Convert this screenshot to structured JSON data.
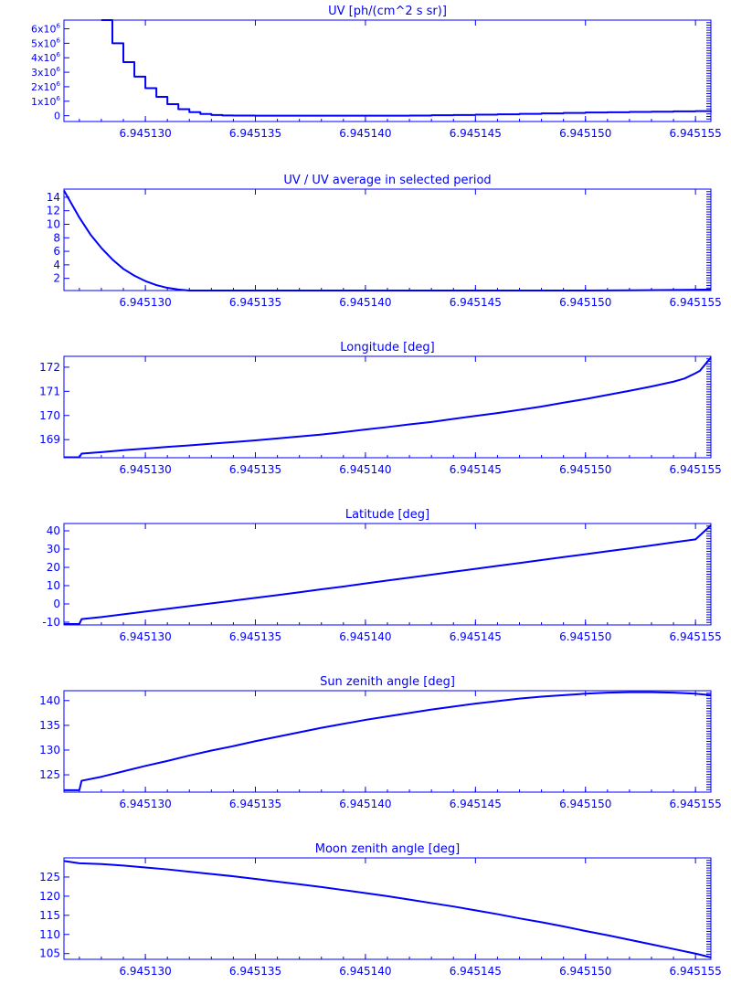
{
  "figure": {
    "line_color": "#0000ff",
    "background": "#ffffff"
  },
  "chart_data": [
    {
      "type": "line",
      "title": "UV [ph/(cm^2 s sr)]",
      "xlim": [
        6.9451263,
        6.9451557
      ],
      "ylim": [
        -400000,
        6600000
      ],
      "xticks": [
        6.94513,
        6.945135,
        6.94514,
        6.945145,
        6.94515,
        6.945155
      ],
      "xtick_labels": [
        "6.945130",
        "6.945135",
        "6.945140",
        "6.945145",
        "6.945150",
        "6.945155"
      ],
      "yticks": [
        0,
        1000000,
        2000000,
        3000000,
        4000000,
        5000000,
        6000000
      ],
      "ytick_labels": [
        {
          "mantissa": "0",
          "exponent": ""
        },
        {
          "mantissa": "1x10",
          "exponent": "6"
        },
        {
          "mantissa": "2x10",
          "exponent": "6"
        },
        {
          "mantissa": "3x10",
          "exponent": "6"
        },
        {
          "mantissa": "4x10",
          "exponent": "6"
        },
        {
          "mantissa": "5x10",
          "exponent": "6"
        },
        {
          "mantissa": "6x10",
          "exponent": "6"
        }
      ],
      "step": true,
      "x": [
        6.945128,
        6.9451285,
        6.945129,
        6.9451295,
        6.94513,
        6.9451305,
        6.945131,
        6.9451315,
        6.945132,
        6.9451325,
        6.945133,
        6.9451335,
        6.945134,
        6.945135,
        6.945136,
        6.945137,
        6.945138,
        6.945139,
        6.94514,
        6.945141,
        6.945142,
        6.945143,
        6.945144,
        6.945145,
        6.945146,
        6.945147,
        6.945148,
        6.945149,
        6.94515,
        6.945151,
        6.945152,
        6.945153,
        6.945154,
        6.945155,
        6.9451557
      ],
      "y": [
        6600000,
        5000000,
        3700000,
        2700000,
        1900000,
        1300000,
        800000,
        450000,
        250000,
        120000,
        50000,
        20000,
        10000,
        0,
        0,
        0,
        0,
        0,
        0,
        0,
        10000,
        30000,
        50000,
        70000,
        100000,
        130000,
        160000,
        190000,
        220000,
        240000,
        260000,
        280000,
        300000,
        320000,
        330000
      ]
    },
    {
      "type": "line",
      "title": "UV / UV average in selected period",
      "xlim": [
        6.9451263,
        6.9451557
      ],
      "ylim": [
        0.2,
        15.2
      ],
      "xticks": [
        6.94513,
        6.945135,
        6.94514,
        6.945145,
        6.94515,
        6.945155
      ],
      "xtick_labels": [
        "6.945130",
        "6.945135",
        "6.945140",
        "6.945145",
        "6.945150",
        "6.945155"
      ],
      "yticks": [
        2,
        4,
        6,
        8,
        10,
        12,
        14
      ],
      "ytick_labels": [
        "2",
        "4",
        "6",
        "8",
        "10",
        "12",
        "14"
      ],
      "x": [
        6.9451263,
        6.945127,
        6.9451275,
        6.945128,
        6.9451285,
        6.945129,
        6.9451295,
        6.94513,
        6.9451305,
        6.945131,
        6.9451315,
        6.945132,
        6.945133,
        6.945134,
        6.945136,
        6.945138,
        6.94514,
        6.945142,
        6.945144,
        6.945146,
        6.945148,
        6.94515,
        6.945152,
        6.945154,
        6.9451557
      ],
      "y": [
        15.0,
        11.0,
        8.5,
        6.5,
        4.8,
        3.4,
        2.4,
        1.6,
        1.0,
        0.6,
        0.35,
        0.2,
        0.1,
        0.05,
        0.02,
        0.02,
        0.03,
        0.05,
        0.08,
        0.12,
        0.16,
        0.2,
        0.24,
        0.28,
        0.35
      ]
    },
    {
      "type": "line",
      "title": "Longitude [deg]",
      "xlim": [
        6.9451263,
        6.9451557
      ],
      "ylim": [
        168.25,
        172.45
      ],
      "xticks": [
        6.94513,
        6.945135,
        6.94514,
        6.945145,
        6.94515,
        6.945155
      ],
      "xtick_labels": [
        "6.945130",
        "6.945135",
        "6.945140",
        "6.945145",
        "6.945150",
        "6.945155"
      ],
      "yticks": [
        169,
        170,
        171,
        172
      ],
      "ytick_labels": [
        "169",
        "170",
        "171",
        "172"
      ],
      "x": [
        6.9451263,
        6.945127,
        6.9451271,
        6.945128,
        6.945129,
        6.94513,
        6.945131,
        6.945132,
        6.945133,
        6.945134,
        6.945135,
        6.945136,
        6.945137,
        6.945138,
        6.945139,
        6.94514,
        6.945141,
        6.945142,
        6.945143,
        6.945144,
        6.945145,
        6.945146,
        6.945147,
        6.945148,
        6.945149,
        6.94515,
        6.945151,
        6.945152,
        6.945153,
        6.945154,
        6.9451545,
        6.945155,
        6.9451552,
        6.9451557
      ],
      "y": [
        168.27,
        168.27,
        168.42,
        168.48,
        168.56,
        168.63,
        168.7,
        168.76,
        168.83,
        168.9,
        168.97,
        169.05,
        169.13,
        169.21,
        169.31,
        169.42,
        169.52,
        169.63,
        169.73,
        169.86,
        169.98,
        170.1,
        170.23,
        170.37,
        170.53,
        170.68,
        170.85,
        171.02,
        171.2,
        171.4,
        171.53,
        171.75,
        171.85,
        172.4
      ]
    },
    {
      "type": "line",
      "title": "Latitude [deg]",
      "xlim": [
        6.9451263,
        6.9451557
      ],
      "ylim": [
        -11.5,
        44
      ],
      "xticks": [
        6.94513,
        6.945135,
        6.94514,
        6.945145,
        6.94515,
        6.945155
      ],
      "xtick_labels": [
        "6.945130",
        "6.945135",
        "6.945140",
        "6.945145",
        "6.945150",
        "6.945155"
      ],
      "yticks": [
        -10,
        0,
        10,
        20,
        30,
        40
      ],
      "ytick_labels": [
        "-10",
        "0",
        "10",
        "20",
        "30",
        "40"
      ],
      "x": [
        6.9451263,
        6.945127,
        6.9451271,
        6.945128,
        6.945129,
        6.94513,
        6.945131,
        6.945132,
        6.945133,
        6.945134,
        6.945135,
        6.945136,
        6.945137,
        6.945138,
        6.945139,
        6.94514,
        6.945141,
        6.945142,
        6.945143,
        6.945144,
        6.945145,
        6.945146,
        6.945147,
        6.945148,
        6.945149,
        6.94515,
        6.945151,
        6.945152,
        6.945153,
        6.945154,
        6.945155,
        6.9451557
      ],
      "y": [
        -11.0,
        -11.0,
        -8.3,
        -7.2,
        -5.7,
        -4.2,
        -2.7,
        -1.2,
        0.3,
        1.8,
        3.3,
        4.8,
        6.4,
        8.0,
        9.5,
        11.2,
        12.8,
        14.4,
        16.0,
        17.6,
        19.2,
        20.8,
        22.4,
        24.0,
        25.6,
        27.2,
        28.8,
        30.4,
        32.0,
        33.7,
        35.3,
        43.0
      ]
    },
    {
      "type": "line",
      "title": "Sun zenith angle [deg]",
      "xlim": [
        6.9451263,
        6.9451557
      ],
      "ylim": [
        121.5,
        142
      ],
      "xticks": [
        6.94513,
        6.945135,
        6.94514,
        6.945145,
        6.94515,
        6.945155
      ],
      "xtick_labels": [
        "6.945130",
        "6.945135",
        "6.945140",
        "6.945145",
        "6.945150",
        "6.945155"
      ],
      "yticks": [
        125,
        130,
        135,
        140
      ],
      "ytick_labels": [
        "125",
        "130",
        "135",
        "140"
      ],
      "x": [
        6.9451263,
        6.945127,
        6.9451271,
        6.945128,
        6.945129,
        6.94513,
        6.945131,
        6.945132,
        6.945133,
        6.945134,
        6.945135,
        6.945136,
        6.945137,
        6.945138,
        6.945139,
        6.94514,
        6.945141,
        6.945142,
        6.945143,
        6.945144,
        6.945145,
        6.945146,
        6.945147,
        6.945148,
        6.945149,
        6.94515,
        6.945151,
        6.945152,
        6.945153,
        6.945154,
        6.945155,
        6.9451557
      ],
      "y": [
        121.9,
        121.9,
        123.8,
        124.6,
        125.7,
        126.8,
        127.8,
        128.9,
        129.9,
        130.8,
        131.8,
        132.7,
        133.6,
        134.5,
        135.3,
        136.1,
        136.8,
        137.5,
        138.2,
        138.8,
        139.4,
        139.9,
        140.4,
        140.8,
        141.1,
        141.4,
        141.6,
        141.7,
        141.7,
        141.6,
        141.4,
        141.1
      ]
    },
    {
      "type": "line",
      "title": "Moon zenith angle [deg]",
      "xlim": [
        6.9451263,
        6.9451557
      ],
      "ylim": [
        103.5,
        130
      ],
      "xticks": [
        6.94513,
        6.945135,
        6.94514,
        6.945145,
        6.94515,
        6.945155
      ],
      "xtick_labels": [
        "6.945130",
        "6.945135",
        "6.945140",
        "6.945145",
        "6.945150",
        "6.945155"
      ],
      "yticks": [
        105,
        110,
        115,
        120,
        125
      ],
      "ytick_labels": [
        "105",
        "110",
        "115",
        "120",
        "125"
      ],
      "x": [
        6.9451263,
        6.945127,
        6.945128,
        6.945129,
        6.94513,
        6.945131,
        6.945132,
        6.945133,
        6.945134,
        6.945135,
        6.945136,
        6.945137,
        6.945138,
        6.945139,
        6.94514,
        6.945141,
        6.945142,
        6.945143,
        6.945144,
        6.945145,
        6.945146,
        6.945147,
        6.945148,
        6.945149,
        6.94515,
        6.945151,
        6.945152,
        6.945153,
        6.945154,
        6.945155,
        6.9451557
      ],
      "y": [
        129.2,
        128.6,
        128.4,
        128.0,
        127.5,
        127.0,
        126.4,
        125.8,
        125.2,
        124.5,
        123.8,
        123.1,
        122.4,
        121.6,
        120.8,
        120.0,
        119.1,
        118.2,
        117.3,
        116.3,
        115.3,
        114.2,
        113.2,
        112.1,
        110.9,
        109.8,
        108.6,
        107.4,
        106.2,
        105.0,
        104.0
      ]
    }
  ]
}
